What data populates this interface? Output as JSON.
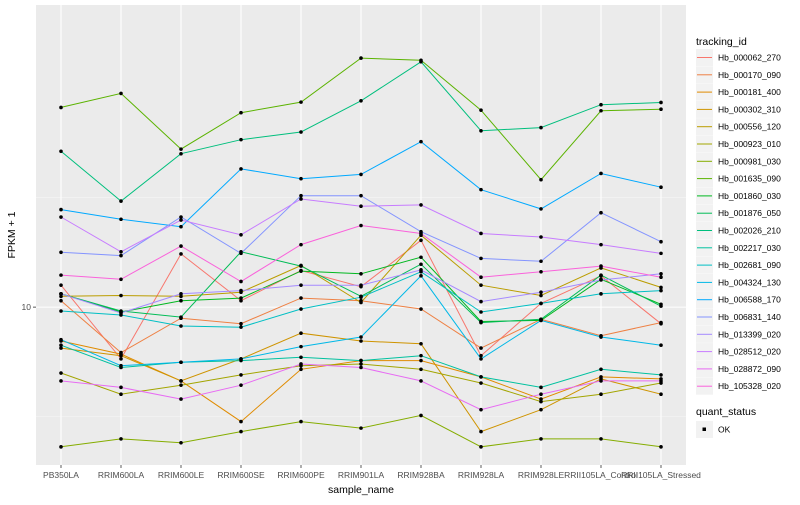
{
  "chart_data": {
    "type": "line",
    "xlabel": "sample_name",
    "ylabel": "FPKM + 1",
    "y_scale": "log10",
    "y_ticks": [
      {
        "value": 10,
        "label": "10"
      }
    ],
    "ylim": [
      1.9,
      240
    ],
    "grid": true,
    "legend_position": "right",
    "categories": [
      "PB350LA",
      "RRIM600LA",
      "RRIM600LE",
      "RRIM600SE",
      "RRIM600PE",
      "RRIM901LA",
      "RRIM928BA",
      "RRIM928LA",
      "RRIM928LE",
      "RRII105LA_Control",
      "RRII105LA_Stressed"
    ],
    "color_legend_title": "tracking_id",
    "shape_legend_title": "quant_status",
    "shape_legend_items": [
      "OK"
    ],
    "series": [
      {
        "name": "Hb_000062_270",
        "color": "#F8766D",
        "values": [
          12.6,
          5.8,
          17.5,
          10.7,
          14.7,
          12.4,
          20.2,
          6.0,
          10.4,
          13.9,
          8.4
        ]
      },
      {
        "name": "Hb_000170_090",
        "color": "#EE8043",
        "values": [
          10.7,
          6.2,
          8.9,
          8.4,
          11.0,
          10.7,
          9.8,
          6.5,
          8.8,
          7.4,
          8.5
        ]
      },
      {
        "name": "Hb_000181_400",
        "color": "#E08B00",
        "values": [
          7.0,
          6.1,
          4.6,
          3.0,
          5.2,
          5.7,
          5.7,
          4.8,
          3.8,
          4.8,
          4.7
        ]
      },
      {
        "name": "Hb_000302_310",
        "color": "#CF9400",
        "values": [
          6.5,
          6.0,
          4.6,
          5.8,
          7.6,
          7.0,
          6.8,
          2.7,
          3.4,
          4.7,
          4.0
        ]
      },
      {
        "name": "Hb_000556_120",
        "color": "#BB9D00",
        "values": [
          11.2,
          11.3,
          11.2,
          11.7,
          15.5,
          10.5,
          21.3,
          12.6,
          11.3,
          15.1,
          12.3
        ]
      },
      {
        "name": "Hb_000923_010",
        "color": "#A3A500",
        "values": [
          5.0,
          4.0,
          4.4,
          4.9,
          5.4,
          5.5,
          5.2,
          4.5,
          3.7,
          4.0,
          4.5
        ]
      },
      {
        "name": "Hb_000981_030",
        "color": "#85AD00",
        "values": [
          2.3,
          2.5,
          2.4,
          2.7,
          3.0,
          2.8,
          3.2,
          2.3,
          2.5,
          2.5,
          2.3
        ]
      },
      {
        "name": "Hb_001635_090",
        "color": "#5BB300",
        "values": [
          81.7,
          94.7,
          52.7,
          77.3,
          86.4,
          137.3,
          134.1,
          79.4,
          38.2,
          78.9,
          80.2
        ]
      },
      {
        "name": "Hb_001860_030",
        "color": "#00B81F",
        "values": [
          11.5,
          9.5,
          10.7,
          11.0,
          14.6,
          14.2,
          16.9,
          8.6,
          8.7,
          13.4,
          10.3
        ]
      },
      {
        "name": "Hb_001876_050",
        "color": "#00BC56",
        "values": [
          11.5,
          9.6,
          9.0,
          17.9,
          15.4,
          11.2,
          15.7,
          8.5,
          8.8,
          14.0,
          10.1
        ]
      },
      {
        "name": "Hb_002026_210",
        "color": "#00BF7D",
        "values": [
          51.5,
          30.5,
          50.2,
          58.2,
          63.1,
          87.6,
          132.1,
          63.9,
          66.1,
          84.1,
          86.1
        ]
      },
      {
        "name": "Hb_002217_030",
        "color": "#00C19F",
        "values": [
          6.7,
          5.3,
          5.6,
          5.7,
          5.9,
          5.7,
          6.0,
          4.8,
          4.3,
          5.2,
          4.9
        ]
      },
      {
        "name": "Hb_002681_090",
        "color": "#00BFC4",
        "values": [
          9.6,
          9.2,
          8.2,
          8.1,
          9.8,
          11.1,
          14.5,
          9.5,
          10.4,
          11.5,
          11.9
        ]
      },
      {
        "name": "Hb_004324_130",
        "color": "#00B8E7",
        "values": [
          7.1,
          5.4,
          5.6,
          5.8,
          6.6,
          7.3,
          13.9,
          5.8,
          8.7,
          7.3,
          6.7
        ]
      },
      {
        "name": "Hb_006588_170",
        "color": "#00A9FF",
        "values": [
          27.9,
          25.2,
          23.3,
          42.8,
          38.6,
          40.4,
          57.0,
          34.4,
          28.1,
          40.8,
          35.3
        ]
      },
      {
        "name": "Hb_006831_140",
        "color": "#8494FF",
        "values": [
          17.8,
          17.2,
          25.8,
          17.6,
          32.3,
          32.3,
          22.1,
          16.7,
          16.2,
          27.0,
          19.9
        ]
      },
      {
        "name": "Hb_013399_020",
        "color": "#A58AFF",
        "values": [
          11.5,
          9.4,
          11.5,
          11.9,
          12.6,
          12.6,
          14.8,
          10.6,
          11.7,
          13.3,
          14.2
        ]
      },
      {
        "name": "Hb_028512_020",
        "color": "#C77CFF",
        "values": [
          25.8,
          17.9,
          25.0,
          21.4,
          31.2,
          28.9,
          29.3,
          21.7,
          20.9,
          19.3,
          17.6
        ]
      },
      {
        "name": "Hb_028872_090",
        "color": "#E76BF3",
        "values": [
          4.6,
          4.3,
          3.8,
          4.4,
          5.5,
          5.3,
          4.6,
          3.4,
          4.0,
          4.6,
          4.6
        ]
      },
      {
        "name": "Hb_105328_020",
        "color": "#FA62DB",
        "values": [
          14.0,
          13.4,
          19.0,
          13.1,
          19.3,
          23.6,
          21.7,
          13.7,
          14.5,
          15.4,
          13.7
        ]
      }
    ]
  }
}
